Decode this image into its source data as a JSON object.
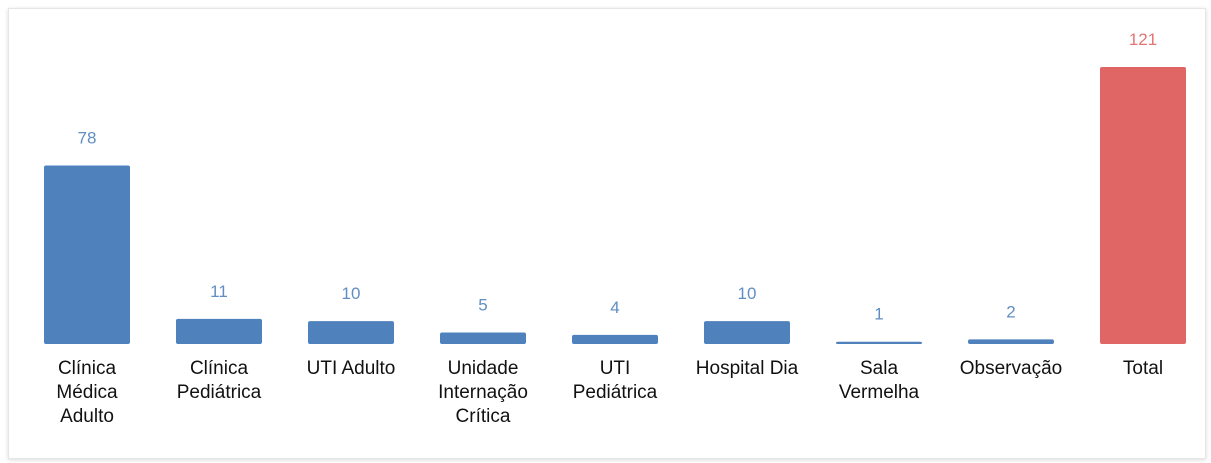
{
  "chart_data": {
    "type": "bar",
    "categories": [
      "Clínica Médica Adulto",
      "Clínica Pediátrica",
      "UTI Adulto",
      "Unidade Internação Crítica",
      "UTI Pediátrica",
      "Hospital Dia",
      "Sala Vermelha",
      "Observação",
      "Total"
    ],
    "values": [
      78,
      11,
      10,
      5,
      4,
      10,
      1,
      2,
      121
    ],
    "colors": [
      "#4f81bd",
      "#4f81bd",
      "#4f81bd",
      "#4f81bd",
      "#4f81bd",
      "#4f81bd",
      "#4f81bd",
      "#4f81bd",
      "#e06666"
    ]
  }
}
